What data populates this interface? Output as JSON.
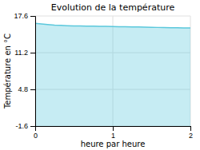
{
  "chart_data": {
    "type": "area",
    "title": "Evolution de la température",
    "x_label": "heure par heure",
    "y_label": "Température en °C",
    "x": [
      0.0,
      0.08,
      0.16,
      0.25,
      0.33,
      0.41,
      0.5,
      0.58,
      0.66,
      0.75,
      0.83,
      0.91,
      1.0,
      1.08,
      1.16,
      1.25,
      1.33,
      1.41,
      1.5,
      1.58,
      1.66,
      1.75,
      1.83,
      1.91,
      2.0
    ],
    "values": [
      16.3,
      16.2,
      16.1,
      16.0,
      15.95,
      15.9,
      15.87,
      15.85,
      15.83,
      15.82,
      15.8,
      15.78,
      15.75,
      15.73,
      15.71,
      15.7,
      15.68,
      15.65,
      15.62,
      15.6,
      15.58,
      15.56,
      15.54,
      15.52,
      15.5
    ],
    "color": "#5bc8dc",
    "xlim": [
      0,
      2
    ],
    "xticks": [
      0,
      1,
      2
    ],
    "ylim": [
      -1.6,
      17.6
    ],
    "yticks": [
      -1.6,
      4.8,
      11.2,
      17.6
    ],
    "grid": true
  }
}
